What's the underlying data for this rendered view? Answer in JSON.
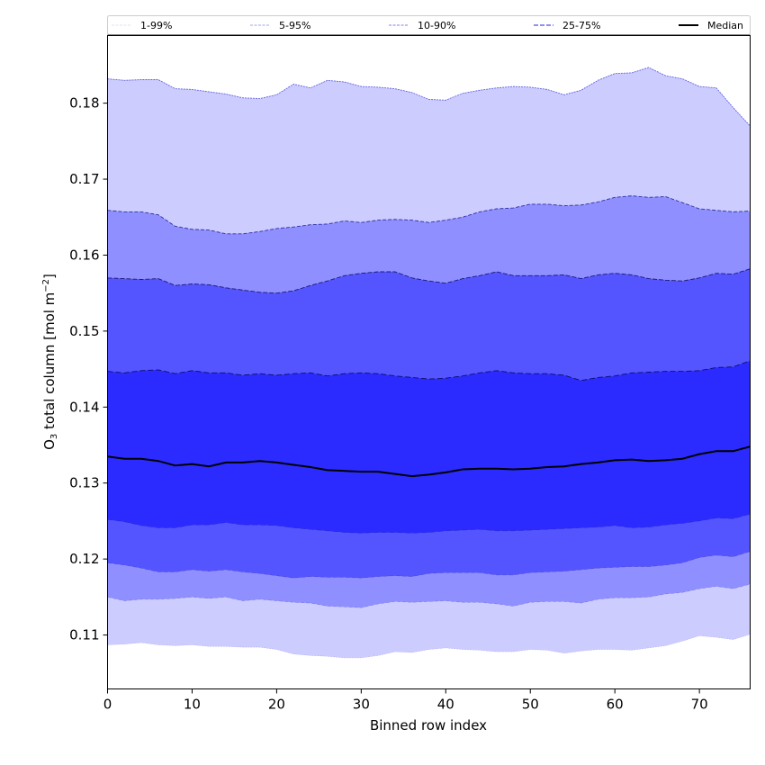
{
  "chart_data": {
    "type": "area",
    "title": "",
    "xlabel": "Binned row index",
    "ylabel_parts": {
      "prefix": "O",
      "subscript": "3",
      "middle": " total column [mol m",
      "superscript": "−2",
      "suffix": "]"
    },
    "xlim": [
      0,
      76
    ],
    "ylim": [
      0.1029,
      0.1889
    ],
    "xticks": [
      0,
      10,
      20,
      30,
      40,
      50,
      60,
      70
    ],
    "yticks": [
      0.11,
      0.12,
      0.13,
      0.14,
      0.15,
      0.16,
      0.17,
      0.18
    ],
    "ytick_labels": [
      "0.11",
      "0.12",
      "0.13",
      "0.14",
      "0.15",
      "0.16",
      "0.17",
      "0.18"
    ],
    "grid": false,
    "legend_position": "top (above plot, spanning width)",
    "x": [
      0,
      2,
      4,
      6,
      8,
      10,
      12,
      14,
      16,
      18,
      20,
      22,
      24,
      26,
      28,
      30,
      32,
      34,
      36,
      38,
      40,
      42,
      44,
      46,
      48,
      50,
      52,
      54,
      56,
      58,
      60,
      62,
      64,
      66,
      68,
      70,
      72,
      74,
      76
    ],
    "percentiles": {
      "p1": [
        0.1087,
        0.1088,
        0.109,
        0.1087,
        0.1086,
        0.1087,
        0.1085,
        0.1085,
        0.1084,
        0.1084,
        0.1081,
        0.1075,
        0.1073,
        0.1072,
        0.107,
        0.107,
        0.1073,
        0.1078,
        0.1077,
        0.1081,
        0.1083,
        0.1081,
        0.108,
        0.1078,
        0.1078,
        0.1081,
        0.108,
        0.1076,
        0.1079,
        0.1081,
        0.1081,
        0.108,
        0.1083,
        0.1086,
        0.1092,
        0.1099,
        0.1097,
        0.1094,
        0.1101
      ],
      "p5": [
        0.115,
        0.1145,
        0.1147,
        0.1147,
        0.1148,
        0.115,
        0.1148,
        0.115,
        0.1145,
        0.1147,
        0.1145,
        0.1143,
        0.1142,
        0.1138,
        0.1137,
        0.1136,
        0.1141,
        0.1144,
        0.1143,
        0.1144,
        0.1145,
        0.1143,
        0.1143,
        0.1141,
        0.1138,
        0.1143,
        0.1144,
        0.1144,
        0.1142,
        0.1147,
        0.1149,
        0.1149,
        0.115,
        0.1154,
        0.1156,
        0.1161,
        0.1164,
        0.1161,
        0.1167
      ],
      "p10": [
        0.1195,
        0.1192,
        0.1188,
        0.1183,
        0.1183,
        0.1186,
        0.1184,
        0.1186,
        0.1183,
        0.1181,
        0.1178,
        0.1175,
        0.1177,
        0.1176,
        0.1176,
        0.1175,
        0.1177,
        0.1178,
        0.1177,
        0.1181,
        0.1182,
        0.1182,
        0.1182,
        0.1179,
        0.1179,
        0.1182,
        0.1183,
        0.1184,
        0.1186,
        0.1188,
        0.1189,
        0.119,
        0.119,
        0.1192,
        0.1195,
        0.1202,
        0.1205,
        0.1203,
        0.121
      ],
      "p25": [
        0.1252,
        0.1249,
        0.1244,
        0.1241,
        0.1241,
        0.1245,
        0.1245,
        0.1248,
        0.1245,
        0.1245,
        0.1244,
        0.1241,
        0.1239,
        0.1237,
        0.1235,
        0.1234,
        0.1235,
        0.1235,
        0.1234,
        0.1235,
        0.1237,
        0.1238,
        0.1239,
        0.1237,
        0.1237,
        0.1238,
        0.1239,
        0.124,
        0.1241,
        0.1242,
        0.1244,
        0.1241,
        0.1242,
        0.1245,
        0.1247,
        0.125,
        0.1254,
        0.1253,
        0.1259
      ],
      "median": [
        0.1335,
        0.1332,
        0.1332,
        0.1329,
        0.1323,
        0.1325,
        0.1322,
        0.1327,
        0.1327,
        0.1329,
        0.1327,
        0.1324,
        0.1321,
        0.1317,
        0.1316,
        0.1315,
        0.1315,
        0.1312,
        0.1309,
        0.1311,
        0.1314,
        0.1318,
        0.1319,
        0.1319,
        0.1318,
        0.1319,
        0.1321,
        0.1322,
        0.1325,
        0.1327,
        0.133,
        0.1331,
        0.1329,
        0.133,
        0.1332,
        0.1338,
        0.1342,
        0.1342,
        0.1348
      ],
      "p75": [
        0.1447,
        0.1445,
        0.1448,
        0.1449,
        0.1444,
        0.1448,
        0.1445,
        0.1445,
        0.1442,
        0.1444,
        0.1442,
        0.1444,
        0.1445,
        0.1441,
        0.1444,
        0.1445,
        0.1444,
        0.1441,
        0.1439,
        0.1437,
        0.1438,
        0.1441,
        0.1445,
        0.1448,
        0.1445,
        0.1444,
        0.1444,
        0.1442,
        0.1435,
        0.1439,
        0.1441,
        0.1445,
        0.1446,
        0.1447,
        0.1447,
        0.1448,
        0.1452,
        0.1453,
        0.1461
      ],
      "p90": [
        0.157,
        0.1569,
        0.1568,
        0.1569,
        0.156,
        0.1562,
        0.1561,
        0.1557,
        0.1554,
        0.1551,
        0.155,
        0.1553,
        0.156,
        0.1566,
        0.1573,
        0.1576,
        0.1578,
        0.1578,
        0.157,
        0.1566,
        0.1563,
        0.1569,
        0.1573,
        0.1578,
        0.1573,
        0.1573,
        0.1573,
        0.1574,
        0.1569,
        0.1574,
        0.1576,
        0.1574,
        0.1569,
        0.1567,
        0.1566,
        0.157,
        0.1576,
        0.1575,
        0.1582
      ],
      "p95": [
        0.1659,
        0.1657,
        0.1657,
        0.1653,
        0.1638,
        0.1634,
        0.1633,
        0.1628,
        0.1628,
        0.1631,
        0.1635,
        0.1637,
        0.164,
        0.1641,
        0.1645,
        0.1643,
        0.1646,
        0.1647,
        0.1646,
        0.1643,
        0.1646,
        0.165,
        0.1657,
        0.1661,
        0.1662,
        0.1667,
        0.1667,
        0.1665,
        0.1666,
        0.167,
        0.1676,
        0.1678,
        0.1676,
        0.1677,
        0.1669,
        0.1661,
        0.1659,
        0.1657,
        0.1658
      ],
      "p99": [
        0.1832,
        0.183,
        0.1831,
        0.1831,
        0.1819,
        0.1818,
        0.1815,
        0.1812,
        0.1807,
        0.1806,
        0.1811,
        0.1825,
        0.182,
        0.183,
        0.1828,
        0.1822,
        0.1821,
        0.1819,
        0.1814,
        0.1805,
        0.1804,
        0.1813,
        0.1817,
        0.182,
        0.1822,
        0.1821,
        0.1818,
        0.1811,
        0.1817,
        0.183,
        0.1839,
        0.184,
        0.1847,
        0.1836,
        0.1832,
        0.1822,
        0.182,
        0.1794,
        0.177
      ]
    },
    "bands": [
      {
        "name": "1-99%",
        "lower": "p1",
        "upper": "p99",
        "fill": "#ccccff",
        "line": "#5555dd",
        "dash": "2,1"
      },
      {
        "name": "5-95%",
        "lower": "p5",
        "upper": "p95",
        "fill": "#8f8fff",
        "line": "#222299",
        "dash": "4,2"
      },
      {
        "name": "10-90%",
        "lower": "p10",
        "upper": "p90",
        "fill": "#5555ff",
        "line": "#111166",
        "dash": "5,2"
      },
      {
        "name": "25-75%",
        "lower": "p25",
        "upper": "p75",
        "fill": "#2b2bff",
        "line": "#0a0a55",
        "dash": "6,3"
      }
    ],
    "legend": [
      {
        "label": "1-99%",
        "color": "#d4d4f8",
        "style": "dashed-thin"
      },
      {
        "label": "5-95%",
        "color": "#a3a3ee",
        "style": "dashed"
      },
      {
        "label": "10-90%",
        "color": "#8080ee",
        "style": "dashed"
      },
      {
        "label": "25-75%",
        "color": "#6a6aee",
        "style": "dashed-thick"
      },
      {
        "label": "Median",
        "color": "#000000",
        "style": "solid"
      }
    ],
    "median_color": "#000000"
  }
}
